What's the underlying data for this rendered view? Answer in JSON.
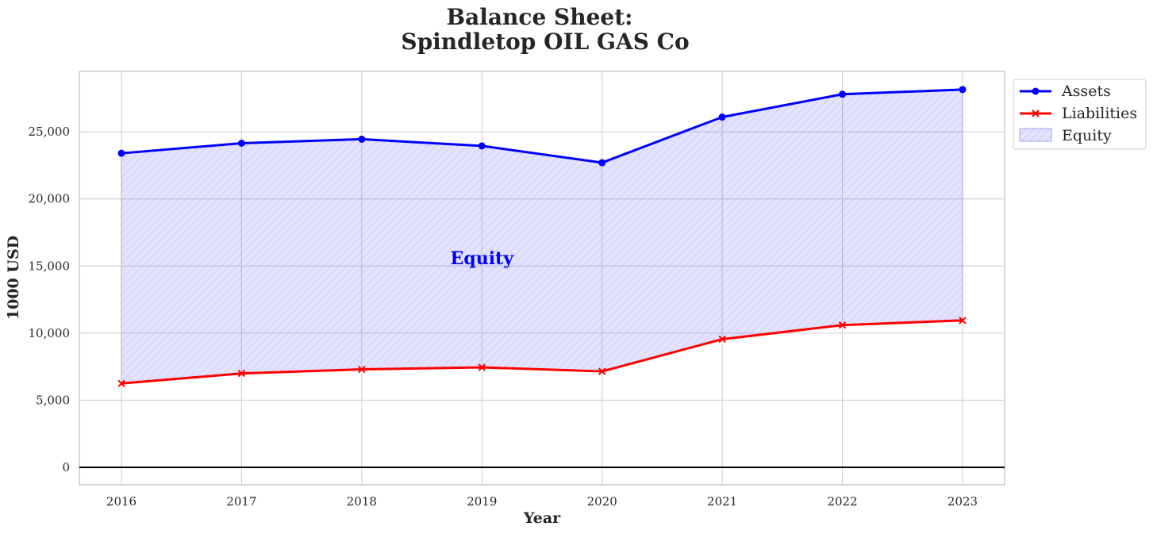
{
  "chart_data": {
    "type": "area",
    "title_line1": "Balance Sheet:",
    "title_line2": "Spindletop OIL GAS Co",
    "xlabel": "Year",
    "ylabel": "1000 USD",
    "x": [
      "2016",
      "2017",
      "2018",
      "2019",
      "2020",
      "2021",
      "2022",
      "2023"
    ],
    "ylim": [
      -1300,
      29500
    ],
    "yticks": [
      0,
      5000,
      10000,
      15000,
      20000,
      25000
    ],
    "ytick_labels": [
      "0",
      "5,000",
      "10,000",
      "15,000",
      "20,000",
      "25,000"
    ],
    "grid": true,
    "legend_position": "outside-top-right",
    "series": [
      {
        "name": "Assets",
        "color": "#0000ff",
        "marker": "circle",
        "values": [
          23400,
          24150,
          24450,
          23950,
          22700,
          26100,
          27800,
          28150
        ]
      },
      {
        "name": "Liabilities",
        "color": "#ff0000",
        "marker": "x",
        "values": [
          6250,
          7000,
          7300,
          7450,
          7150,
          9550,
          10600,
          10950
        ]
      }
    ],
    "fill": {
      "name": "Equity",
      "color": "#0000ff",
      "between": [
        "Assets",
        "Liabilities"
      ]
    },
    "annotation": {
      "text": "Equity",
      "x": "2019",
      "y": 15600,
      "color": "#0000ff"
    }
  }
}
